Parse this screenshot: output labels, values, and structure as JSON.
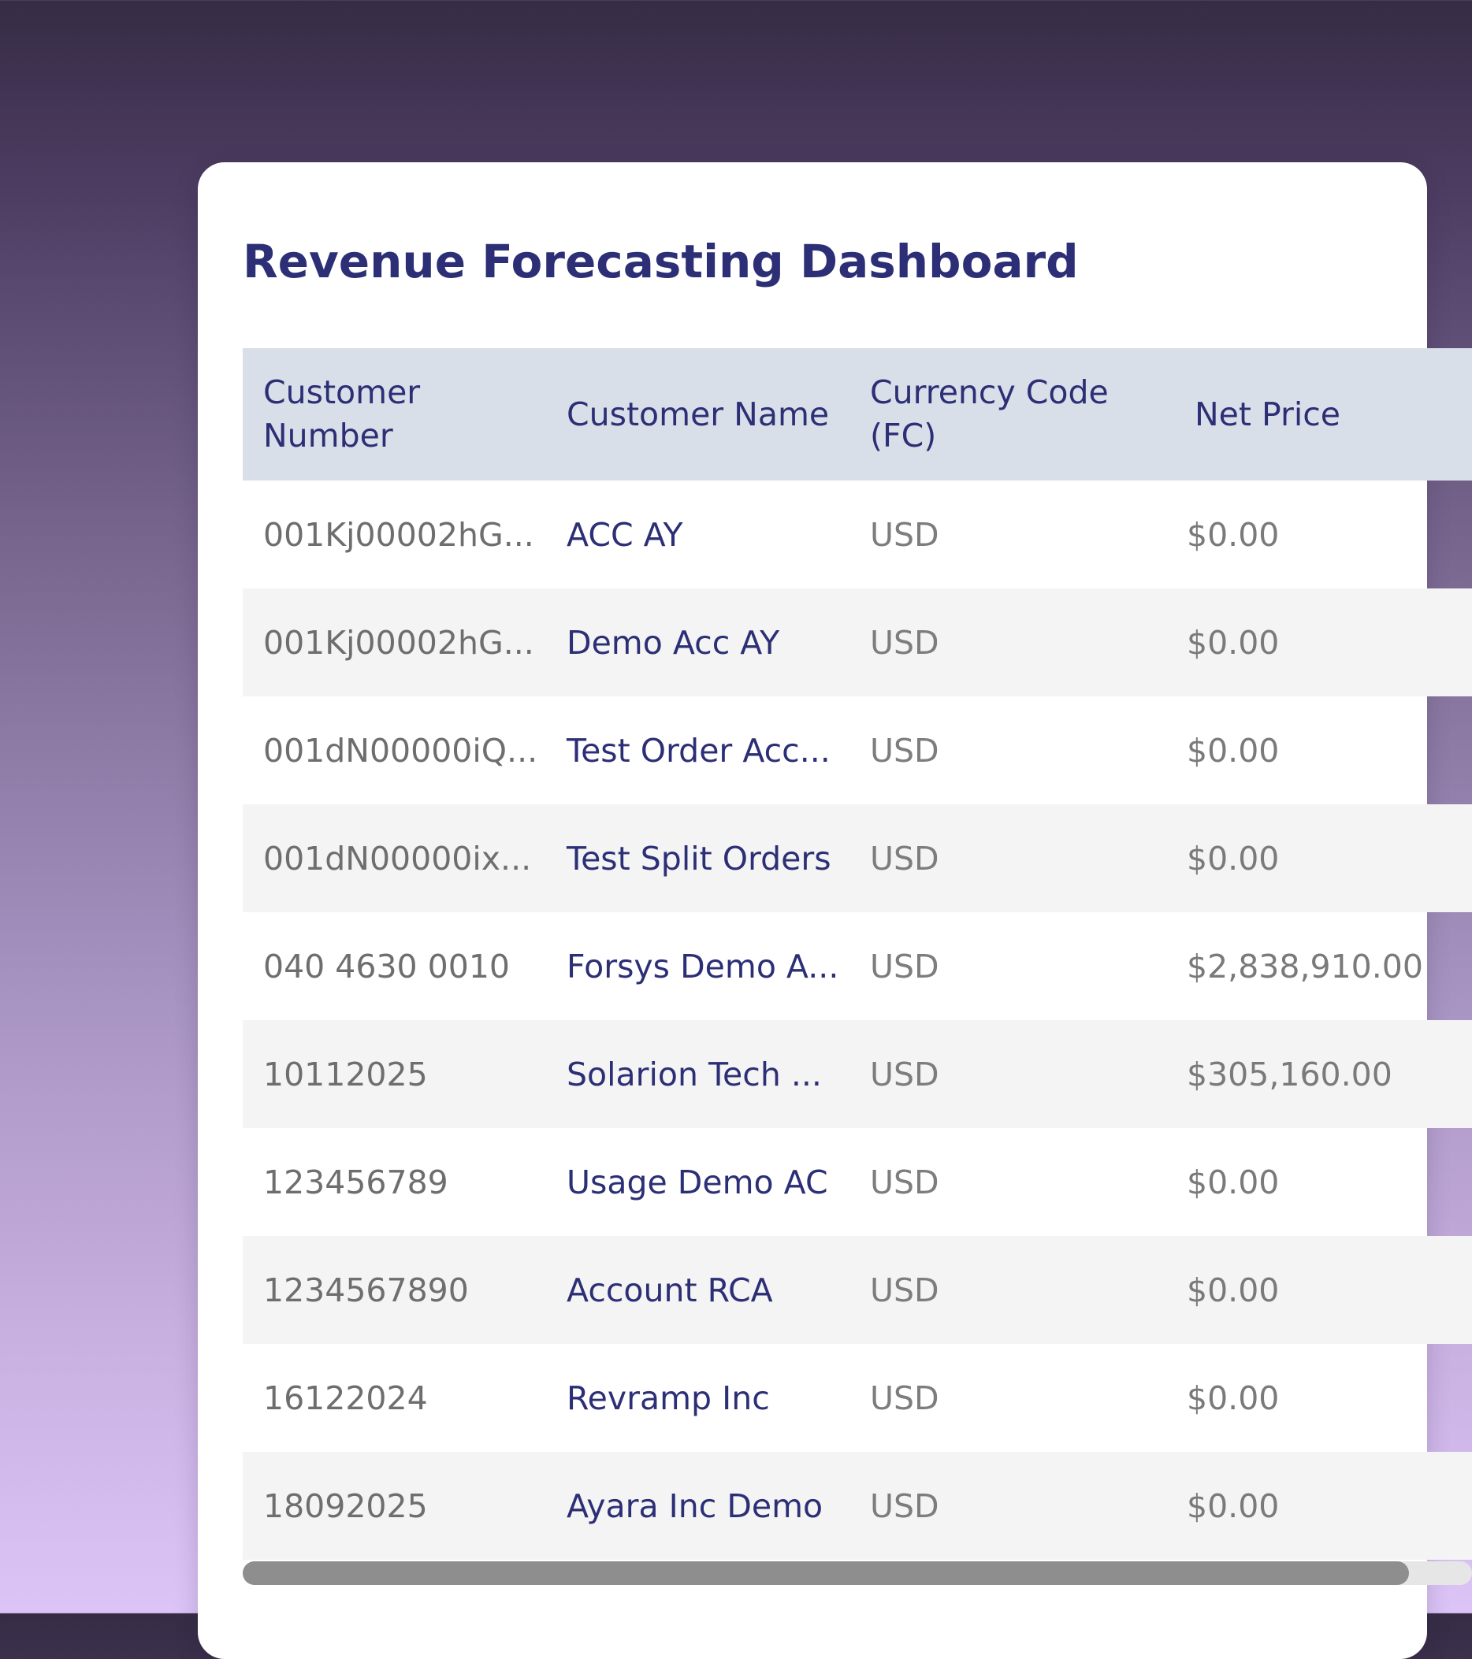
{
  "title": "Revenue Forecasting Dashboard",
  "table": {
    "headers": {
      "customer_number": "Customer Number",
      "customer_name": "Customer Name",
      "currency_code": "Currency Code (FC)",
      "net_price": "Net Price"
    },
    "rows": [
      {
        "number": "001Kj00002hG...",
        "name": "ACC AY",
        "currency": "USD",
        "price": "$0.00"
      },
      {
        "number": "001Kj00002hG...",
        "name": "Demo Acc AY",
        "currency": "USD",
        "price": "$0.00"
      },
      {
        "number": "001dN00000iQ...",
        "name": "Test Order Acc...",
        "currency": "USD",
        "price": "$0.00"
      },
      {
        "number": "001dN00000ix...",
        "name": "Test Split Orders",
        "currency": "USD",
        "price": "$0.00"
      },
      {
        "number": "040 4630 0010",
        "name": "Forsys Demo A...",
        "currency": "USD",
        "price": "$2,838,910.00"
      },
      {
        "number": "10112025",
        "name": "Solarion Tech ...",
        "currency": "USD",
        "price": "$305,160.00"
      },
      {
        "number": "123456789",
        "name": "Usage Demo AC",
        "currency": "USD",
        "price": "$0.00"
      },
      {
        "number": "1234567890",
        "name": "Account RCA",
        "currency": "USD",
        "price": "$0.00"
      },
      {
        "number": "16122024",
        "name": "Revramp Inc",
        "currency": "USD",
        "price": "$0.00"
      },
      {
        "number": "18092025",
        "name": "Ayara Inc Demo",
        "currency": "USD",
        "price": "$0.00"
      }
    ]
  },
  "colors": {
    "accent": "#2c2f75",
    "header_bg": "#d9dfe8",
    "row_alt_bg": "#f4f4f4"
  }
}
